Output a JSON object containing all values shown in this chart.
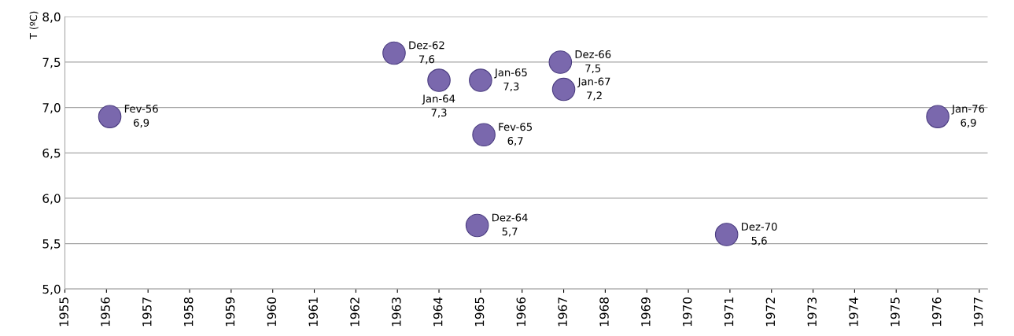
{
  "chart_data": {
    "type": "scatter",
    "ylabel": "T (ºC)",
    "x": [
      1956.08,
      1962.92,
      1964.0,
      1965.0,
      1965.08,
      1964.92,
      1966.92,
      1967.0,
      1970.92,
      1976.0
    ],
    "series": [
      {
        "color": "#7a68ad",
        "values": [
          6.9,
          7.6,
          7.3,
          7.3,
          6.7,
          5.7,
          7.5,
          7.2,
          5.6,
          6.9
        ],
        "value_labels": [
          "Fev-56\n6,9",
          "Dez-62\n7,6",
          "Jan-64\n7,3",
          "Jan-65\n7,3",
          "Fev-65\n6,7",
          "Dez-64\n5,7",
          "Dez-66\n7,5",
          "Jan-67\n7,2",
          "Dez-70\n5,6",
          "Jan-76\n6,9"
        ]
      }
    ],
    "xlim": [
      1955,
      1977.2
    ],
    "xticks": [
      1955,
      1956,
      1957,
      1958,
      1959,
      1960,
      1961,
      1962,
      1963,
      1964,
      1965,
      1966,
      1967,
      1968,
      1969,
      1970,
      1971,
      1972,
      1973,
      1974,
      1975,
      1976,
      1977
    ],
    "ylim": [
      5.0,
      8.0
    ],
    "yticks": [
      {
        "value": 5.0,
        "label": "5,0"
      },
      {
        "value": 5.5,
        "label": "5,5"
      },
      {
        "value": 6.0,
        "label": "6,0"
      },
      {
        "value": 6.5,
        "label": "6,5"
      },
      {
        "value": 7.0,
        "label": "7,0"
      },
      {
        "value": 7.5,
        "label": "7,5"
      },
      {
        "value": 8.0,
        "label": "8,0"
      }
    ],
    "grid": "y",
    "marker": "circle"
  }
}
